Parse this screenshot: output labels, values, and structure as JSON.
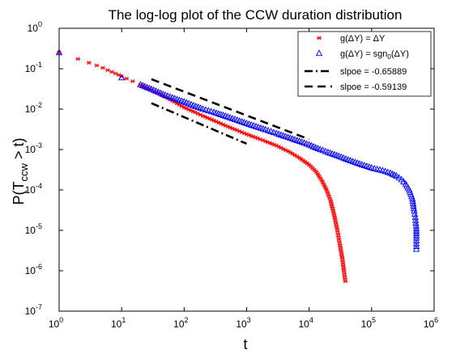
{
  "chart_data": {
    "type": "scatter",
    "title": "The log-log plot of the CCW duration distribution",
    "xlabel": "t",
    "ylabel_parts": {
      "base": "P(T",
      "sub": "ccw",
      "tail": " > t)"
    },
    "x_scale": "log",
    "y_scale": "log",
    "xlim": [
      1,
      1000000
    ],
    "ylim": [
      1e-07,
      1
    ],
    "x_tick_exponents": [
      0,
      1,
      2,
      3,
      4,
      5,
      6
    ],
    "y_tick_exponents": [
      0,
      -1,
      -2,
      -3,
      -4,
      -5,
      -6,
      -7
    ],
    "tick_base": "10",
    "legend_position": "top-right",
    "series": [
      {
        "legend_parts": [
          "g(",
          "ΔY",
          ") = ",
          "ΔY"
        ],
        "marker": "asterisk",
        "color": "#ff0000",
        "points": [
          [
            1,
            0.25
          ],
          [
            2,
            0.175
          ],
          [
            3,
            0.14
          ],
          [
            4,
            0.12
          ],
          [
            5,
            0.105
          ],
          [
            6,
            0.092
          ],
          [
            7,
            0.083
          ],
          [
            8,
            0.076
          ],
          [
            9,
            0.07
          ],
          [
            10,
            0.064
          ],
          [
            12,
            0.057
          ],
          [
            15,
            0.049
          ],
          [
            20,
            0.04
          ],
          [
            30,
            0.03
          ],
          [
            40,
            0.024
          ],
          [
            50,
            0.02
          ],
          [
            70,
            0.015
          ],
          [
            100,
            0.011
          ],
          [
            150,
            0.0083
          ],
          [
            200,
            0.0068
          ],
          [
            300,
            0.0052
          ],
          [
            500,
            0.0037
          ],
          [
            700,
            0.003
          ],
          [
            1000,
            0.0024
          ],
          [
            1500,
            0.0019
          ],
          [
            2000,
            0.0016
          ],
          [
            3000,
            0.00125
          ],
          [
            5000,
            0.00085
          ],
          [
            7000,
            0.00062
          ],
          [
            10000,
            0.00042
          ],
          [
            13000,
            0.00028
          ],
          [
            16000,
            0.00017
          ],
          [
            19000,
            0.0001
          ],
          [
            22000,
            5.5e-05
          ],
          [
            25000,
            2.5e-05
          ],
          [
            28000,
            1.1e-05
          ],
          [
            31000,
            4.5e-06
          ],
          [
            34000,
            2e-06
          ],
          [
            36000,
            1e-06
          ],
          [
            38000,
            5.5e-07
          ]
        ]
      },
      {
        "legend_parts": [
          "g(",
          "ΔY",
          ") = sgn",
          "0",
          "(",
          "ΔY",
          ")"
        ],
        "marker": "triangle",
        "color": "#0000ff",
        "points": [
          [
            1,
            0.25
          ],
          [
            10,
            0.06
          ],
          [
            20,
            0.04
          ],
          [
            30,
            0.031
          ],
          [
            50,
            0.022
          ],
          [
            100,
            0.015
          ],
          [
            200,
            0.01
          ],
          [
            300,
            0.0083
          ],
          [
            500,
            0.0064
          ],
          [
            1000,
            0.0044
          ],
          [
            2000,
            0.0031
          ],
          [
            3000,
            0.0025
          ],
          [
            5000,
            0.0019
          ],
          [
            7000,
            0.0016
          ],
          [
            10000,
            0.0013
          ],
          [
            15000,
            0.001
          ],
          [
            20000,
            0.00085
          ],
          [
            30000,
            0.00068
          ],
          [
            50000,
            0.0005
          ],
          [
            70000,
            0.00042
          ],
          [
            100000,
            0.00035
          ],
          [
            150000,
            0.0003
          ],
          [
            200000,
            0.00026
          ],
          [
            250000,
            0.00022
          ],
          [
            300000,
            0.00018
          ],
          [
            350000,
            0.00014
          ],
          [
            400000,
            0.0001
          ],
          [
            450000,
            6e-05
          ],
          [
            480000,
            3e-05
          ],
          [
            500000,
            2.1e-05
          ],
          [
            510000,
            1.5e-05
          ],
          [
            520000,
            1.1e-05
          ],
          [
            520000,
            6.5e-06
          ],
          [
            520000,
            3.4e-06
          ]
        ]
      }
    ],
    "reference_lines": [
      {
        "legend": "slpoe = -0.65889",
        "style": "dash-dot",
        "slope": -0.65889,
        "x": [
          30,
          1000
        ],
        "y": [
          0.014,
          0.00139
        ]
      },
      {
        "legend": "slpoe = -0.59139",
        "style": "dashed",
        "slope": -0.59139,
        "x": [
          30,
          10000
        ],
        "y": [
          0.055,
          0.00179
        ]
      }
    ]
  }
}
